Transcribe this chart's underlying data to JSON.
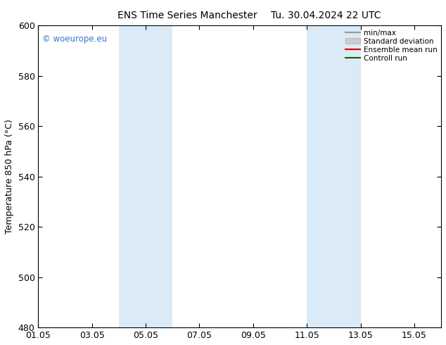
{
  "title_left": "ENS Time Series Manchester",
  "title_right": "Tu. 30.04.2024 22 UTC",
  "ylabel": "Temperature 850 hPa (°C)",
  "ylim": [
    480,
    600
  ],
  "yticks": [
    480,
    500,
    520,
    540,
    560,
    580,
    600
  ],
  "xtick_labels": [
    "01.05",
    "03.05",
    "05.05",
    "07.05",
    "09.05",
    "11.05",
    "13.05",
    "15.05"
  ],
  "xtick_pos": [
    1,
    3,
    5,
    7,
    9,
    11,
    13,
    15
  ],
  "xlim": [
    1,
    16
  ],
  "shade_bands": [
    {
      "start_day": 4.0,
      "end_day": 6.0
    },
    {
      "start_day": 11.0,
      "end_day": 13.0
    }
  ],
  "shade_color": "#daeaf7",
  "watermark": "© woeurope.eu",
  "watermark_color": "#3377cc",
  "legend_items": [
    {
      "label": "min/max",
      "type": "line",
      "color": "#999999",
      "lw": 1.5
    },
    {
      "label": "Standard deviation",
      "type": "patch",
      "color": "#cccccc"
    },
    {
      "label": "Ensemble mean run",
      "type": "line",
      "color": "#dd0000",
      "lw": 1.5
    },
    {
      "label": "Controll run",
      "type": "line",
      "color": "#006600",
      "lw": 1.5
    }
  ],
  "background_color": "#ffffff",
  "plot_bg_color": "#ffffff",
  "spine_color": "#000000",
  "title_fontsize": 10,
  "axis_fontsize": 9,
  "tick_fontsize": 9
}
